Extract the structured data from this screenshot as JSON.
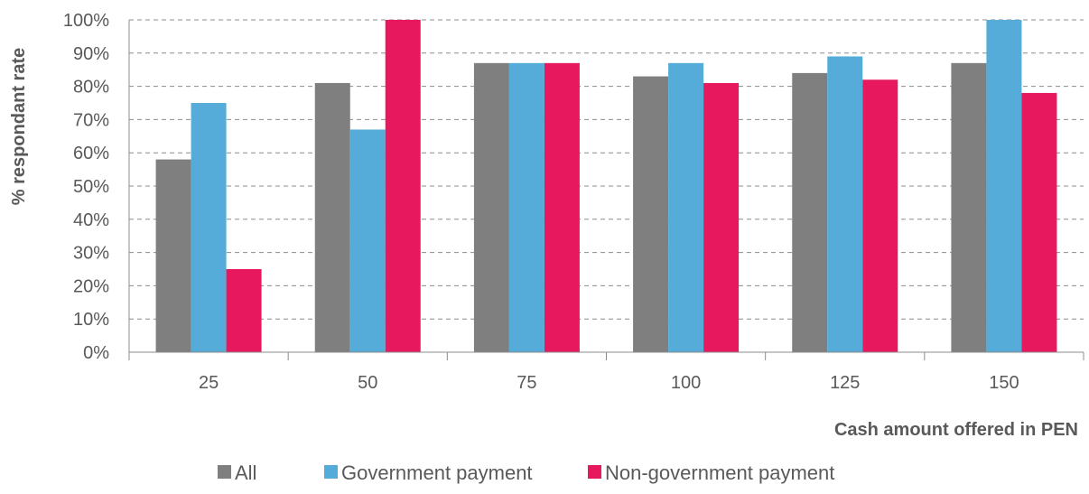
{
  "chart_data": {
    "type": "bar",
    "categories": [
      "25",
      "50",
      "75",
      "100",
      "125",
      "150"
    ],
    "series": [
      {
        "name": "All",
        "color": "#7f7f7f",
        "values": [
          58,
          81,
          87,
          83,
          84,
          87
        ]
      },
      {
        "name": "Government payment",
        "color": "#55acd8",
        "values": [
          75,
          67,
          87,
          87,
          89,
          100
        ]
      },
      {
        "name": "Non-government payment",
        "color": "#e8185f",
        "values": [
          25,
          100,
          87,
          81,
          82,
          78
        ]
      }
    ],
    "ylim": [
      0,
      100
    ],
    "yticks": [
      "0%",
      "10%",
      "20%",
      "30%",
      "40%",
      "50%",
      "60%",
      "70%",
      "80%",
      "90%",
      "100%"
    ],
    "xlabel": "Cash amount offered in PEN",
    "ylabel": "% respondant rate",
    "grid": "horizontal-dashed",
    "legend_position": "bottom"
  }
}
